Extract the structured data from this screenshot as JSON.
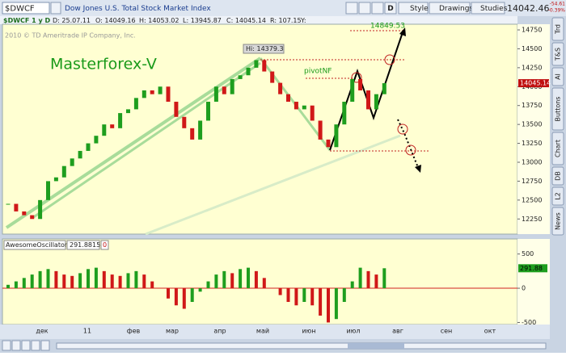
{
  "toolbar": {
    "symbol": "$DWCF",
    "description": "Dow Jones U.S. Total Stock Market Index",
    "period_button": "D",
    "style": "Style",
    "drawings": "Drawings",
    "studies": "Studies",
    "last": "14042.46",
    "change": "-54.61",
    "change_pct": "-0.39%"
  },
  "info_bar": {
    "name": "$DWCF 1 y D",
    "date": "D: 25.07.11",
    "open": "O: 14049.16",
    "high": "H: 14053.02",
    "low": "L: 13945.87",
    "close": "C: 14045.14",
    "range": "R: 107.15",
    "y": "Y:"
  },
  "side_tabs": [
    "Trd",
    "T&S",
    "AI",
    "Buttons",
    "Chart",
    "DB",
    "L2",
    "News"
  ],
  "chart_data": {
    "type": "candlestick",
    "copyright": "2010 © TD Ameritrade IP Company, Inc.",
    "watermark": "Masterforex-V",
    "annotations": {
      "high": "Hi: 14379.3",
      "pivot": "pivotNF",
      "target": "14849.53"
    },
    "price_badge": "14045.14",
    "closes": [
      12450,
      12350,
      12300,
      12250,
      12500,
      12750,
      12800,
      12950,
      13050,
      13150,
      13250,
      13350,
      13500,
      13450,
      13650,
      13700,
      13850,
      13950,
      13900,
      14000,
      13800,
      13600,
      13450,
      13300,
      13550,
      13800,
      14000,
      13900,
      14100,
      14150,
      14250,
      14350,
      14200,
      14050,
      13900,
      13800,
      13700,
      13750,
      13550,
      13300,
      13200,
      13500,
      13800,
      14100,
      13950,
      13700,
      13900,
      14045.14
    ],
    "up_color": "#1e9e1e",
    "down_color": "#d01818",
    "ylim": [
      12050,
      14825
    ],
    "yticks": [
      12250,
      12500,
      12750,
      13000,
      13250,
      13500,
      13750,
      14000,
      14250,
      14500,
      14750
    ],
    "x_labels": [
      "дек",
      "11",
      "фев",
      "мар",
      "апр",
      "май",
      "июн",
      "июл",
      "авг",
      "сен",
      "окт"
    ],
    "oscillator": {
      "name": "AwesomeOscillator",
      "zero_label": "0",
      "badge": "291.88",
      "values": [
        50,
        100,
        150,
        200,
        250,
        280,
        250,
        200,
        180,
        220,
        280,
        300,
        250,
        200,
        180,
        220,
        250,
        200,
        100,
        0,
        -150,
        -250,
        -300,
        -200,
        -50,
        100,
        200,
        250,
        220,
        280,
        300,
        250,
        150,
        0,
        -100,
        -200,
        -250,
        -200,
        -250,
        -400,
        -500,
        -450,
        -200,
        100,
        300,
        250,
        200,
        291.8815
      ],
      "ylim": [
        -530,
        720
      ],
      "yticks": [
        500,
        0,
        -500
      ]
    }
  }
}
